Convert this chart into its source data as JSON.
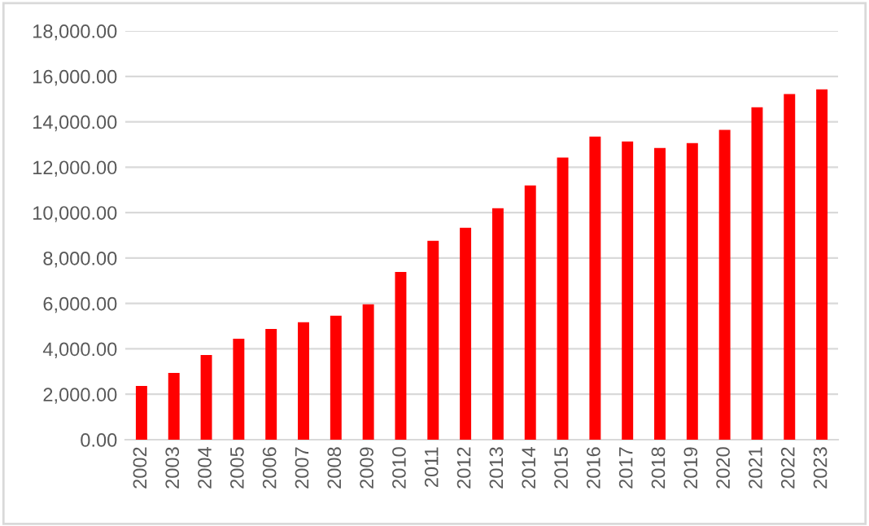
{
  "chart_data": {
    "type": "bar",
    "categories": [
      "2002",
      "2003",
      "2004",
      "2005",
      "2006",
      "2007",
      "2008",
      "2009",
      "2010",
      "2011",
      "2012",
      "2013",
      "2014",
      "2015",
      "2016",
      "2017",
      "2018",
      "2019",
      "2020",
      "2021",
      "2022",
      "2023"
    ],
    "values": [
      2370,
      2940,
      3730,
      4450,
      4880,
      5170,
      5460,
      5960,
      7390,
      8760,
      9330,
      10190,
      11200,
      12420,
      13350,
      13130,
      12850,
      13060,
      13640,
      14640,
      15220,
      15430
    ],
    "color": "#ff0000",
    "ylim": [
      0,
      18000
    ],
    "yticks": [
      {
        "value": 0,
        "label": "0.00"
      },
      {
        "value": 2000,
        "label": "2,000.00"
      },
      {
        "value": 4000,
        "label": "4,000.00"
      },
      {
        "value": 6000,
        "label": "6,000.00"
      },
      {
        "value": 8000,
        "label": "8,000.00"
      },
      {
        "value": 10000,
        "label": "10,000.00"
      },
      {
        "value": 12000,
        "label": "12,000.00"
      },
      {
        "value": 14000,
        "label": "14,000.00"
      },
      {
        "value": 16000,
        "label": "16,000.00"
      },
      {
        "value": 18000,
        "label": "18,000.00"
      }
    ],
    "grid": "y"
  }
}
